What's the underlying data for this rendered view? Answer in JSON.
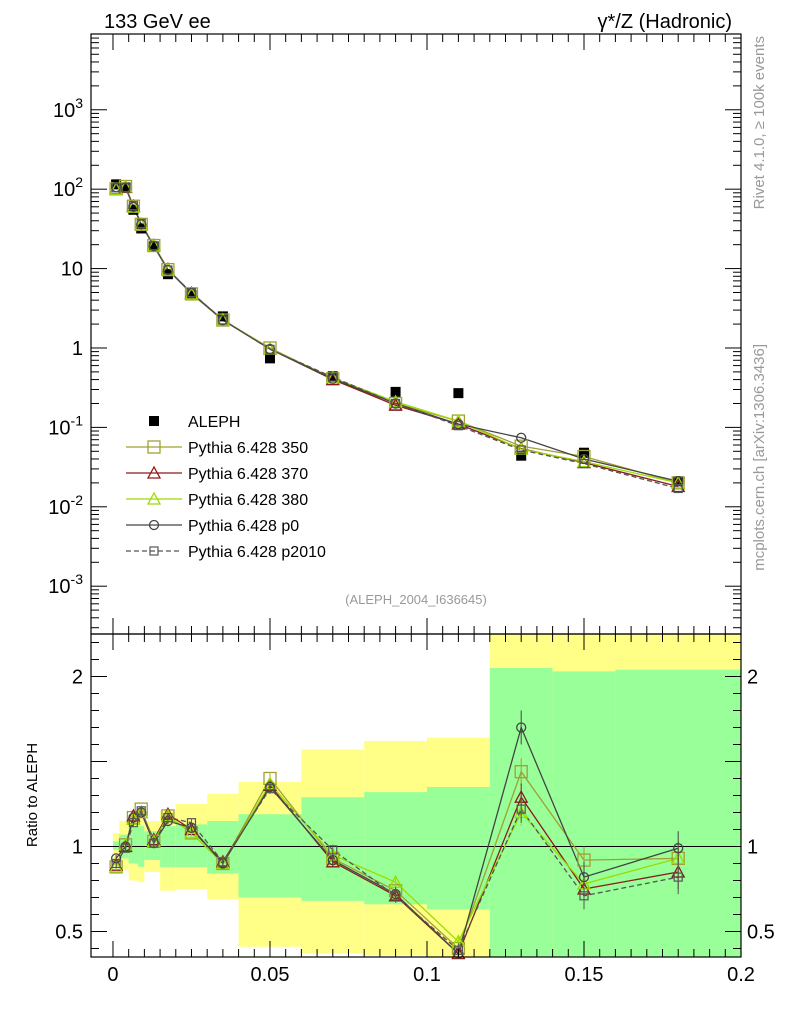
{
  "header": {
    "left": "133 GeV ee",
    "right": "γ*/Z (Hadronic)"
  },
  "side_labels": {
    "rivet": "Rivet 4.1.0, ≥ 100k events",
    "mcplots": "mcplots.cern.ch [arXiv:1306.3436]"
  },
  "analysis_id": "(ALEPH_2004_I636645)",
  "chart_data": [
    {
      "panel": "main",
      "type": "scatter",
      "yscale": "log",
      "xlim": [
        -0.007,
        0.2
      ],
      "ylim": [
        0.00025,
        9000
      ],
      "y_tick_labels": {
        "0.001": "10^-3",
        "0.01": "10^-2",
        "0.1": "10^-1",
        "1": "1",
        "10": "10",
        "100": "10^2",
        "1000": "10^3"
      },
      "series": [
        {
          "name": "ALEPH",
          "color": "#000000",
          "marker": "filled-square",
          "line": "none",
          "x": [
            0.001,
            0.004,
            0.0065,
            0.009,
            0.013,
            0.0175,
            0.025,
            0.035,
            0.05,
            0.07,
            0.09,
            0.11,
            0.13,
            0.15,
            0.18
          ],
          "y": [
            115,
            105,
            55,
            32,
            19,
            8.5,
            4.6,
            2.5,
            0.74,
            0.44,
            0.28,
            0.27,
            0.044,
            0.048,
            0.021
          ],
          "yerr_hi": [
            120,
            110,
            58,
            34,
            19.7,
            9.2,
            4.9,
            2.7,
            0.8,
            0.46,
            0.3,
            0.28,
            0.047,
            0.05,
            0.022
          ],
          "yerr_lo": [
            110,
            100,
            52,
            30,
            18.3,
            7.8,
            4.3,
            2.3,
            0.68,
            0.42,
            0.26,
            0.26,
            0.041,
            0.046,
            0.02
          ]
        },
        {
          "name": "Pythia 6.428 350",
          "color": "#a0a033",
          "marker": "open-square-large",
          "line": "solid",
          "x": [
            0.001,
            0.004,
            0.0065,
            0.009,
            0.013,
            0.0175,
            0.025,
            0.035,
            0.05,
            0.07,
            0.09,
            0.11,
            0.13,
            0.15,
            0.18
          ],
          "y": [
            101,
            108,
            61,
            36,
            19.5,
            9.7,
            4.8,
            2.25,
            1.0,
            0.41,
            0.2,
            0.12,
            0.058,
            0.043,
            0.02
          ]
        },
        {
          "name": "Pythia 6.428 370",
          "color": "#8b1a1a",
          "marker": "open-triangle",
          "line": "solid",
          "x": [
            0.001,
            0.004,
            0.0065,
            0.009,
            0.013,
            0.0175,
            0.025,
            0.035,
            0.05,
            0.07,
            0.09,
            0.11,
            0.13,
            0.15,
            0.18
          ],
          "y": [
            101,
            106,
            61,
            36,
            19.7,
            9.8,
            4.9,
            2.27,
            0.97,
            0.4,
            0.19,
            0.11,
            0.054,
            0.036,
            0.018
          ]
        },
        {
          "name": "Pythia 6.428 380",
          "color": "#99dd00",
          "marker": "open-triangle",
          "line": "solid",
          "x": [
            0.001,
            0.004,
            0.0065,
            0.009,
            0.013,
            0.0175,
            0.025,
            0.035,
            0.05,
            0.07,
            0.09,
            0.11,
            0.13,
            0.15,
            0.18
          ],
          "y": [
            100,
            107,
            60,
            36,
            19.6,
            9.7,
            4.8,
            2.26,
            0.98,
            0.42,
            0.21,
            0.12,
            0.053,
            0.037,
            0.02
          ]
        },
        {
          "name": "Pythia 6.428 p0",
          "color": "#444444",
          "marker": "open-circle",
          "line": "solid",
          "x": [
            0.001,
            0.004,
            0.0065,
            0.009,
            0.013,
            0.0175,
            0.025,
            0.035,
            0.05,
            0.07,
            0.09,
            0.11,
            0.13,
            0.15,
            0.18
          ],
          "y": [
            106,
            105,
            60,
            36,
            19.2,
            9.6,
            4.9,
            2.24,
            0.97,
            0.41,
            0.2,
            0.11,
            0.074,
            0.04,
            0.021
          ]
        },
        {
          "name": "Pythia 6.428 p2010",
          "color": "#555555",
          "marker": "open-square-small",
          "line": "dashed",
          "x": [
            0.001,
            0.004,
            0.0065,
            0.009,
            0.013,
            0.0175,
            0.025,
            0.035,
            0.05,
            0.07,
            0.09,
            0.11,
            0.13,
            0.15,
            0.18
          ],
          "y": [
            104,
            104,
            62,
            37,
            19.4,
            9.6,
            5.0,
            2.26,
            0.96,
            0.43,
            0.2,
            0.105,
            0.052,
            0.035,
            0.017
          ]
        }
      ]
    },
    {
      "panel": "ratio",
      "type": "line",
      "ylabel": "Ratio to ALEPH",
      "xlim": [
        -0.007,
        0.2
      ],
      "ylim": [
        0.35,
        2.25
      ],
      "x_ticks": [
        0,
        0.05,
        0.1,
        0.15,
        0.2
      ],
      "x_tick_labels": [
        "0",
        "0.05",
        "0.1",
        "0.15",
        "0.2"
      ],
      "y_ticks": [
        0.5,
        1,
        2
      ],
      "y_tick_labels": [
        "0.5",
        "1",
        "2"
      ],
      "bands": {
        "bins": [
          [
            0.0,
            0.002
          ],
          [
            0.002,
            0.005
          ],
          [
            0.005,
            0.008
          ],
          [
            0.008,
            0.01
          ],
          [
            0.01,
            0.015
          ],
          [
            0.015,
            0.02
          ],
          [
            0.02,
            0.03
          ],
          [
            0.03,
            0.04
          ],
          [
            0.04,
            0.06
          ],
          [
            0.06,
            0.08
          ],
          [
            0.08,
            0.1
          ],
          [
            0.1,
            0.12
          ],
          [
            0.12,
            0.14
          ],
          [
            0.14,
            0.16
          ],
          [
            0.16,
            0.2
          ]
        ],
        "green_lo": [
          0.98,
          0.93,
          0.9,
          0.88,
          0.92,
          0.88,
          0.88,
          0.84,
          0.7,
          0.68,
          0.66,
          0.63,
          0.35,
          0.35,
          0.35
        ],
        "green_hi": [
          1.03,
          1.07,
          1.11,
          1.12,
          1.09,
          1.12,
          1.13,
          1.15,
          1.19,
          1.29,
          1.32,
          1.35,
          2.05,
          2.03,
          2.04
        ],
        "yellow_lo": [
          0.92,
          0.86,
          0.8,
          0.79,
          0.85,
          0.74,
          0.75,
          0.69,
          0.41,
          0.37,
          0.36,
          0.35,
          0.35,
          0.35,
          0.35
        ],
        "yellow_hi": [
          1.08,
          1.15,
          1.19,
          1.23,
          1.15,
          1.21,
          1.25,
          1.31,
          1.38,
          1.57,
          1.62,
          1.64,
          2.25,
          2.25,
          2.25
        ]
      },
      "reference_line": 1,
      "series": [
        {
          "name": "Pythia 6.428 350",
          "y": [
            0.88,
            1.01,
            1.17,
            1.22,
            1.03,
            1.18,
            1.08,
            0.9,
            1.4,
            0.93,
            0.74,
            0.4,
            1.44,
            0.92,
            0.93
          ],
          "yerr": [
            0.02,
            0.02,
            0.02,
            0.02,
            0.02,
            0.02,
            0.02,
            0.02,
            0.03,
            0.03,
            0.04,
            0.04,
            0.08,
            0.08,
            0.1
          ]
        },
        {
          "name": "Pythia 6.428 370",
          "y": [
            0.89,
            1.0,
            1.18,
            1.2,
            1.04,
            1.19,
            1.1,
            0.91,
            1.36,
            0.91,
            0.71,
            0.37,
            1.29,
            0.75,
            0.85
          ],
          "yerr": [
            0.02,
            0.02,
            0.02,
            0.02,
            0.02,
            0.02,
            0.02,
            0.02,
            0.03,
            0.03,
            0.04,
            0.04,
            0.08,
            0.08,
            0.1
          ]
        },
        {
          "name": "Pythia 6.428 380",
          "y": [
            0.88,
            1.01,
            1.16,
            1.2,
            1.03,
            1.18,
            1.08,
            0.9,
            1.37,
            0.95,
            0.79,
            0.44,
            1.2,
            0.78,
            0.93
          ],
          "yerr": [
            0.02,
            0.02,
            0.02,
            0.02,
            0.02,
            0.02,
            0.02,
            0.02,
            0.03,
            0.03,
            0.04,
            0.04,
            0.08,
            0.08,
            0.1
          ]
        },
        {
          "name": "Pythia 6.428 p0",
          "y": [
            0.93,
            1.0,
            1.17,
            1.2,
            1.02,
            1.15,
            1.11,
            0.9,
            1.35,
            0.92,
            0.72,
            0.37,
            1.7,
            0.82,
            0.99
          ],
          "yerr": [
            0.02,
            0.02,
            0.02,
            0.02,
            0.02,
            0.02,
            0.02,
            0.02,
            0.03,
            0.03,
            0.04,
            0.04,
            0.1,
            0.09,
            0.1
          ]
        },
        {
          "name": "Pythia 6.428 p2010",
          "y": [
            0.9,
            0.99,
            1.14,
            1.21,
            1.02,
            1.17,
            1.14,
            0.91,
            1.34,
            0.98,
            0.71,
            0.39,
            1.22,
            0.71,
            0.82
          ],
          "yerr": [
            0.02,
            0.02,
            0.02,
            0.02,
            0.02,
            0.02,
            0.02,
            0.02,
            0.03,
            0.03,
            0.04,
            0.04,
            0.08,
            0.08,
            0.1
          ]
        }
      ]
    }
  ]
}
